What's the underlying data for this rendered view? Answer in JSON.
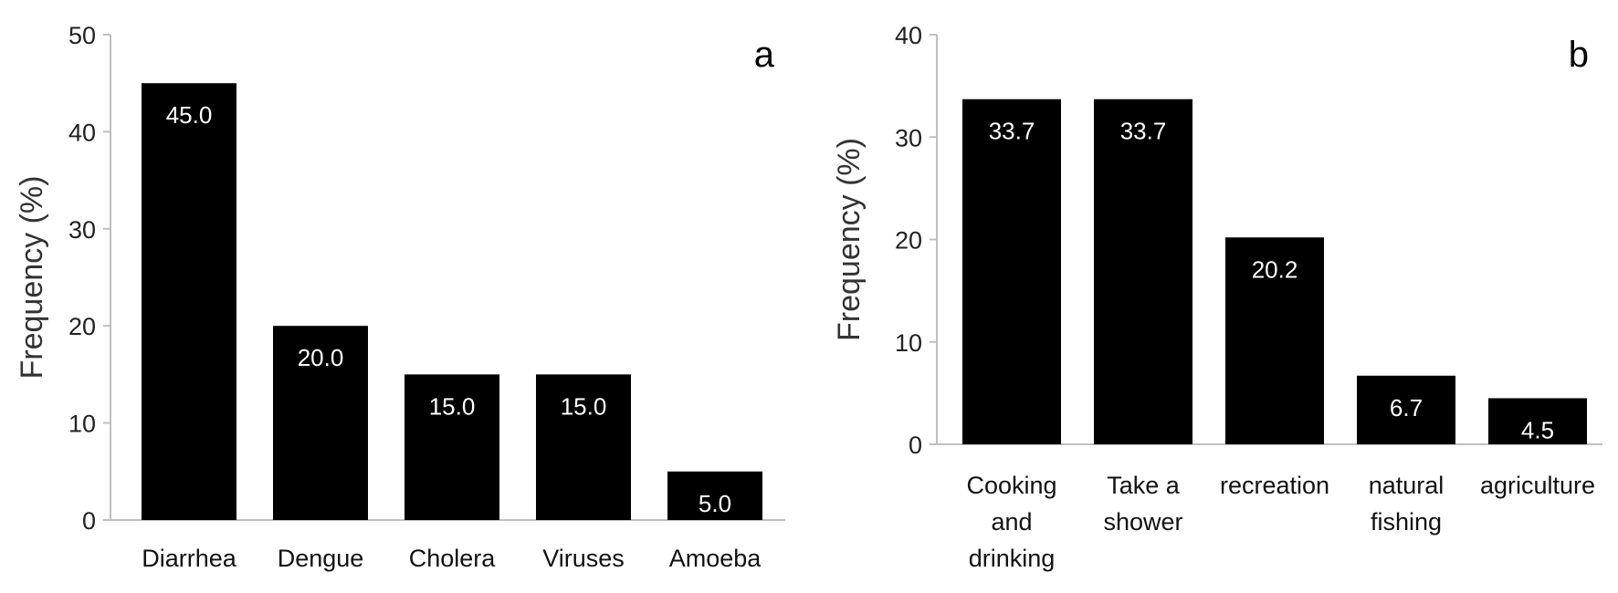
{
  "chart_data": [
    {
      "type": "bar",
      "panel_label": "a",
      "title": "",
      "xlabel": "",
      "ylabel": "Frequency (%)",
      "ylim": [
        0,
        50
      ],
      "yticks": [
        "0",
        "10",
        "20",
        "30",
        "40",
        "50"
      ],
      "categories": [
        [
          "Diarrhea"
        ],
        [
          "Dengue"
        ],
        [
          "Cholera"
        ],
        [
          "Viruses"
        ],
        [
          "Amoeba"
        ]
      ],
      "values": [
        45.0,
        20.0,
        15.0,
        15.0,
        5.0
      ],
      "data_labels": [
        "45.0",
        "20.0",
        "15.0",
        "15.0",
        "5.0"
      ],
      "bar_color": "#000000",
      "grid": false
    },
    {
      "type": "bar",
      "panel_label": "b",
      "title": "",
      "xlabel": "",
      "ylabel": "Frequency (%)",
      "ylim": [
        0,
        40
      ],
      "yticks": [
        "0",
        "10",
        "20",
        "30",
        "40"
      ],
      "categories": [
        [
          "Cooking",
          "and",
          "drinking"
        ],
        [
          "Take a",
          "shower"
        ],
        [
          "recreation"
        ],
        [
          "natural",
          "fishing"
        ],
        [
          "agriculture"
        ]
      ],
      "values": [
        33.7,
        33.7,
        20.2,
        6.7,
        4.5
      ],
      "data_labels": [
        "33.7",
        "33.7",
        "20.2",
        "6.7",
        "4.5"
      ],
      "bar_color": "#000000",
      "grid": false
    }
  ]
}
